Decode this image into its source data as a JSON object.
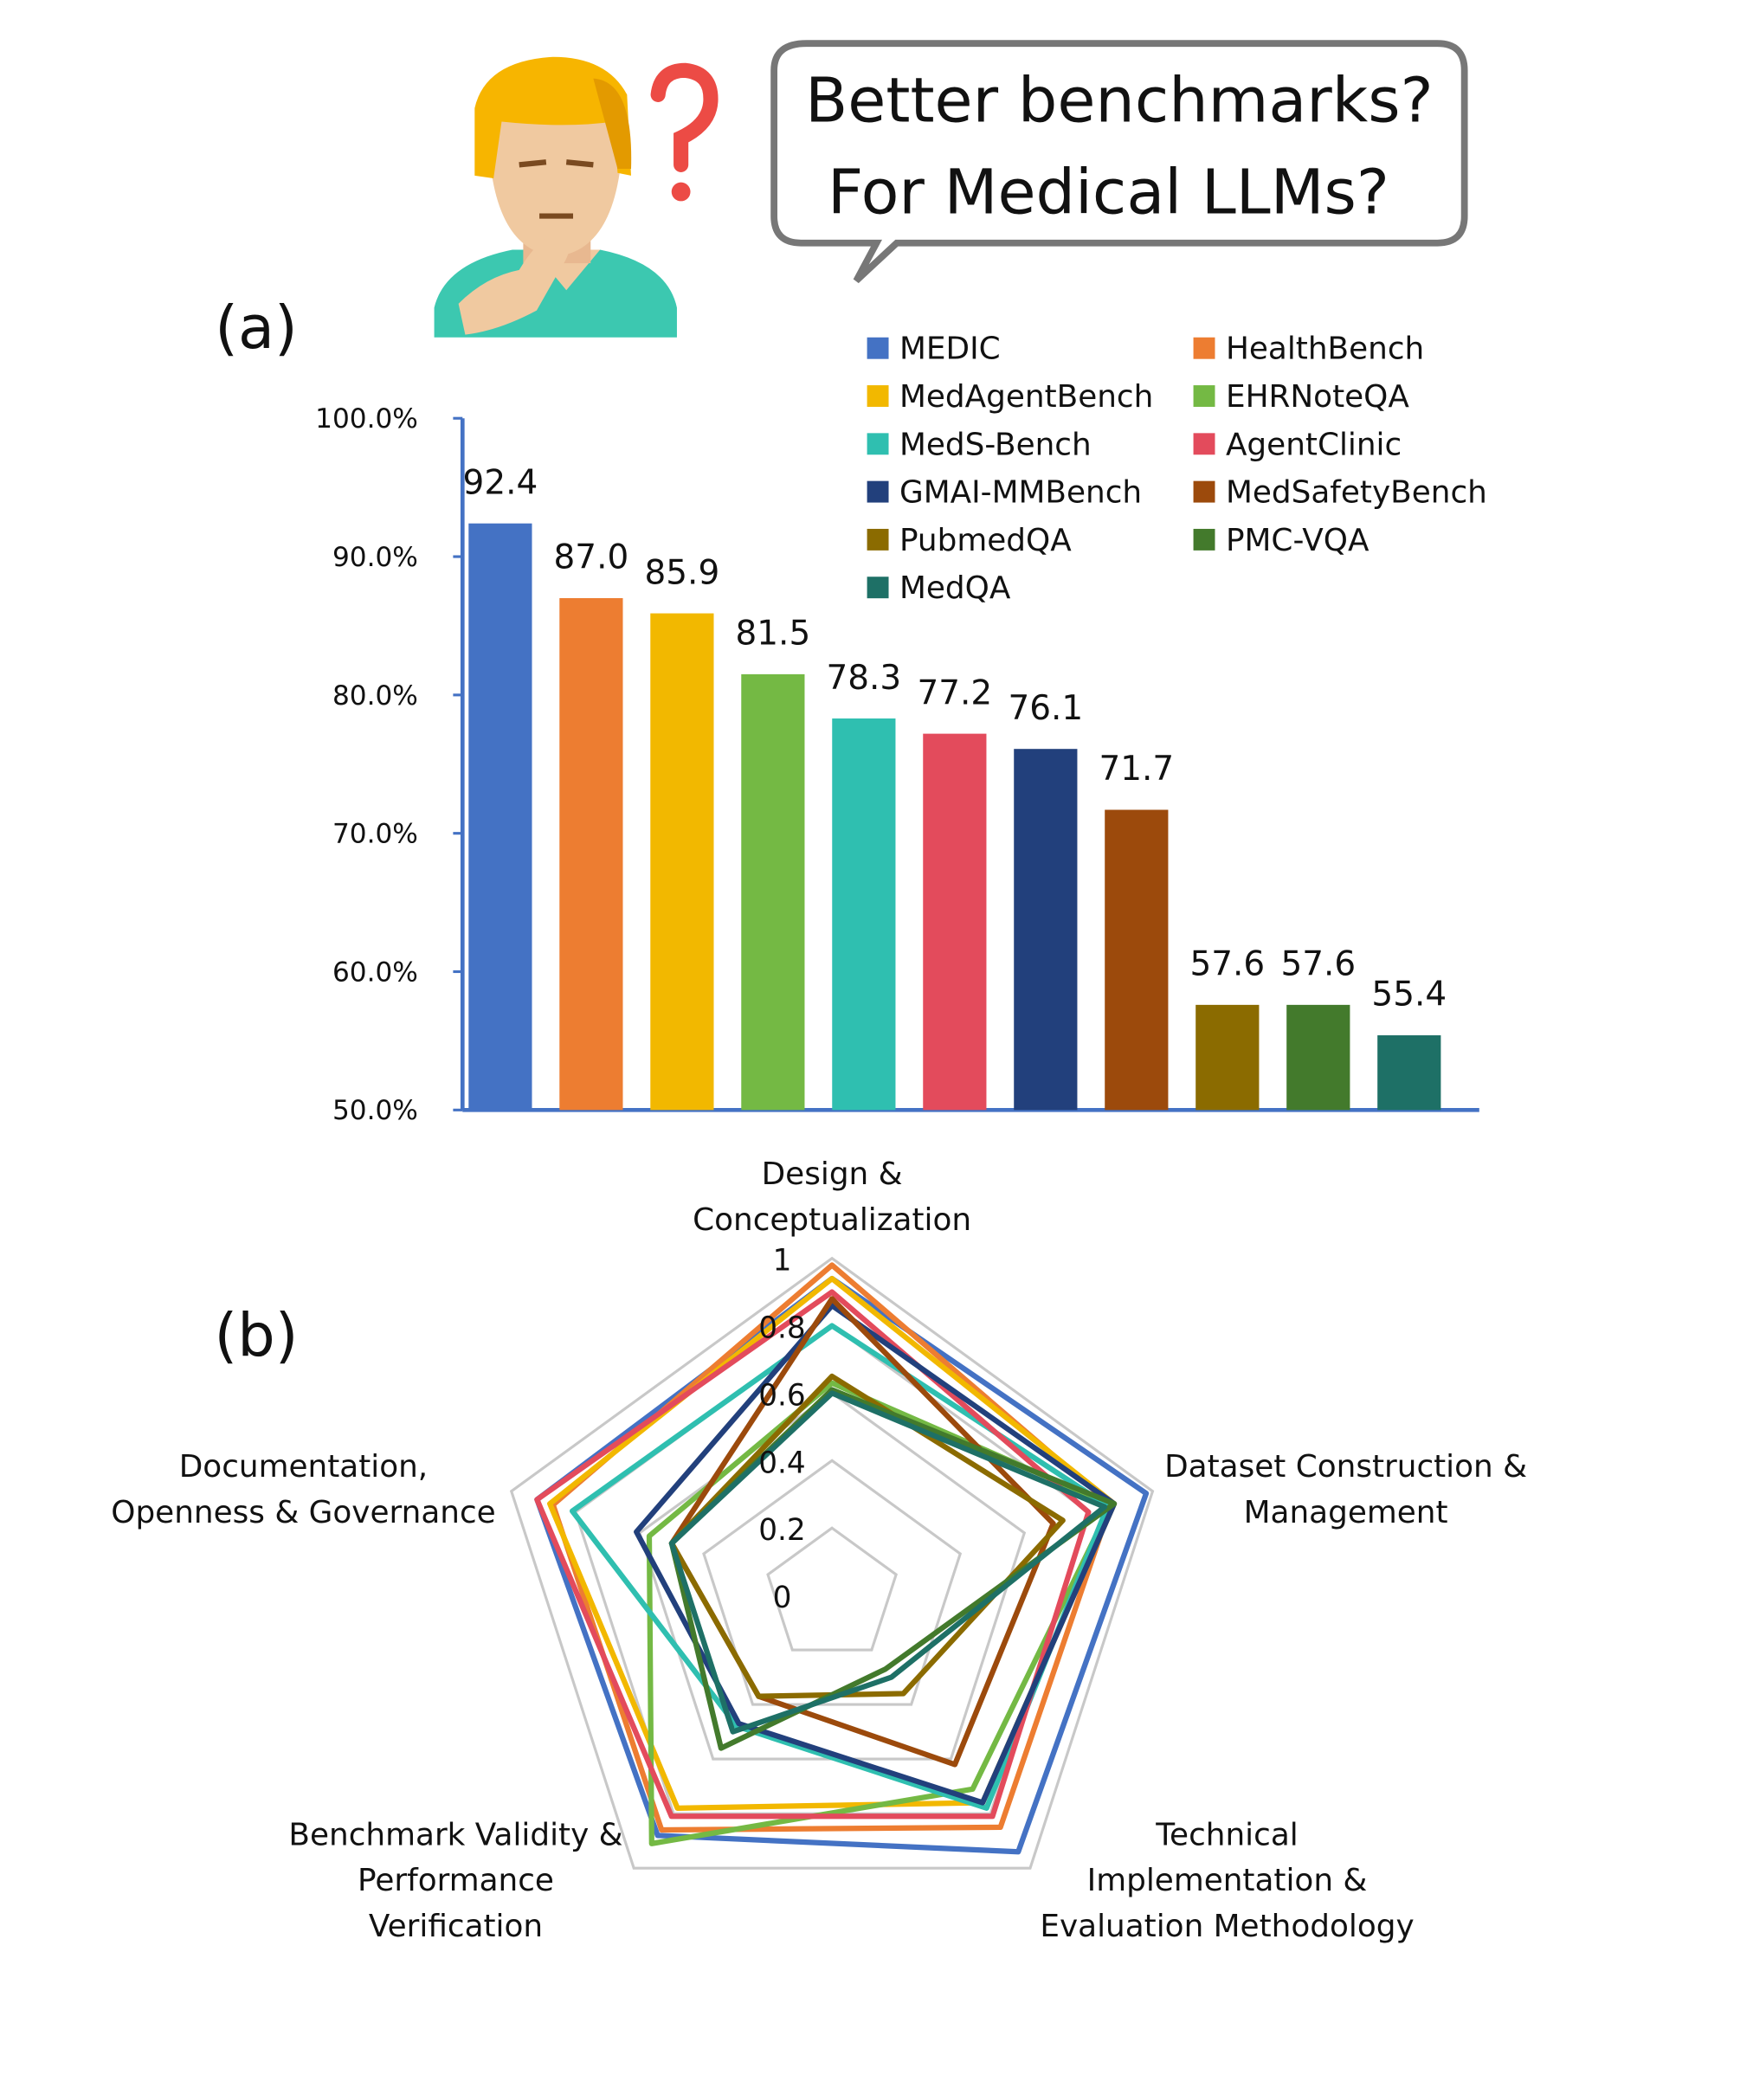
{
  "header": {
    "bubble": [
      "Better benchmarks?",
      "For Medical LLMs?"
    ]
  },
  "chart_data": [
    {
      "type": "bar",
      "panel_label": "(a)",
      "categories": [
        "MEDIC",
        "HealthBench",
        "MedAgentBench",
        "EHRNoteQA",
        "MedS-Bench",
        "AgentClinic",
        "GMAI-MMBench",
        "MedSafetyBench",
        "PubmedQA",
        "PMC-VQA",
        "MedQA"
      ],
      "values": [
        92.4,
        87.0,
        85.9,
        81.5,
        78.3,
        77.2,
        76.1,
        71.7,
        57.6,
        57.6,
        55.4
      ],
      "value_labels": [
        "92.4",
        "87.0",
        "85.9",
        "81.5",
        "78.3",
        "77.2",
        "76.1",
        "71.7",
        "57.6",
        "57.6",
        "55.4"
      ],
      "colors": [
        "#4472c4",
        "#ed7d31",
        "#f2b800",
        "#74b944",
        "#2fbfb0",
        "#e34b5c",
        "#22407c",
        "#9c4a0c",
        "#8b6b00",
        "#437a2c",
        "#1e7066"
      ],
      "ylim": [
        50,
        100
      ],
      "yticks": [
        {
          "value": 50,
          "label": "50.0%"
        },
        {
          "value": 60,
          "label": "60.0%"
        },
        {
          "value": 70,
          "label": "70.0%"
        },
        {
          "value": 80,
          "label": "80.0%"
        },
        {
          "value": 90,
          "label": "90.0%"
        },
        {
          "value": 100,
          "label": "100.0%"
        }
      ],
      "legend": "top-right"
    },
    {
      "type": "radar",
      "panel_label": "(b)",
      "categories": [
        "Design &\nConceptualization",
        "Dataset Construction &\nManagement",
        "Technical\nImplementation &\nEvaluation Methodology",
        "Benchmark Validity &\nPerformance\nVerification",
        "Documentation,\nOpenness & Governance"
      ],
      "rlim": [
        0,
        1
      ],
      "rticks": [
        0,
        0.2,
        0.4,
        0.6,
        0.8,
        1
      ],
      "grid": true,
      "series": [
        {
          "color": "#4472c4",
          "values": [
            0.94,
            0.98,
            0.94,
            0.88,
            0.92
          ]
        },
        {
          "color": "#ed7d31",
          "values": [
            0.98,
            0.87,
            0.85,
            0.86,
            0.87
          ]
        },
        {
          "color": "#f2b800",
          "values": [
            0.94,
            0.88,
            0.76,
            0.78,
            0.88
          ]
        },
        {
          "color": "#74b944",
          "values": [
            0.63,
            0.87,
            0.71,
            0.91,
            0.57
          ]
        },
        {
          "color": "#2fbfb0",
          "values": [
            0.8,
            0.86,
            0.78,
            0.48,
            0.81
          ]
        },
        {
          "color": "#e34b5c",
          "values": [
            0.9,
            0.8,
            0.81,
            0.81,
            0.92
          ]
        },
        {
          "color": "#22407c",
          "values": [
            0.86,
            0.88,
            0.76,
            0.47,
            0.61
          ]
        },
        {
          "color": "#9c4a0c",
          "values": [
            0.88,
            0.69,
            0.62,
            0.37,
            0.5
          ]
        },
        {
          "color": "#8b6b00",
          "values": [
            0.65,
            0.72,
            0.36,
            0.37,
            0.5
          ]
        },
        {
          "color": "#437a2c",
          "values": [
            0.61,
            0.88,
            0.27,
            0.56,
            0.5
          ]
        },
        {
          "color": "#1e7066",
          "values": [
            0.6,
            0.85,
            0.3,
            0.5,
            0.5
          ]
        }
      ]
    }
  ]
}
